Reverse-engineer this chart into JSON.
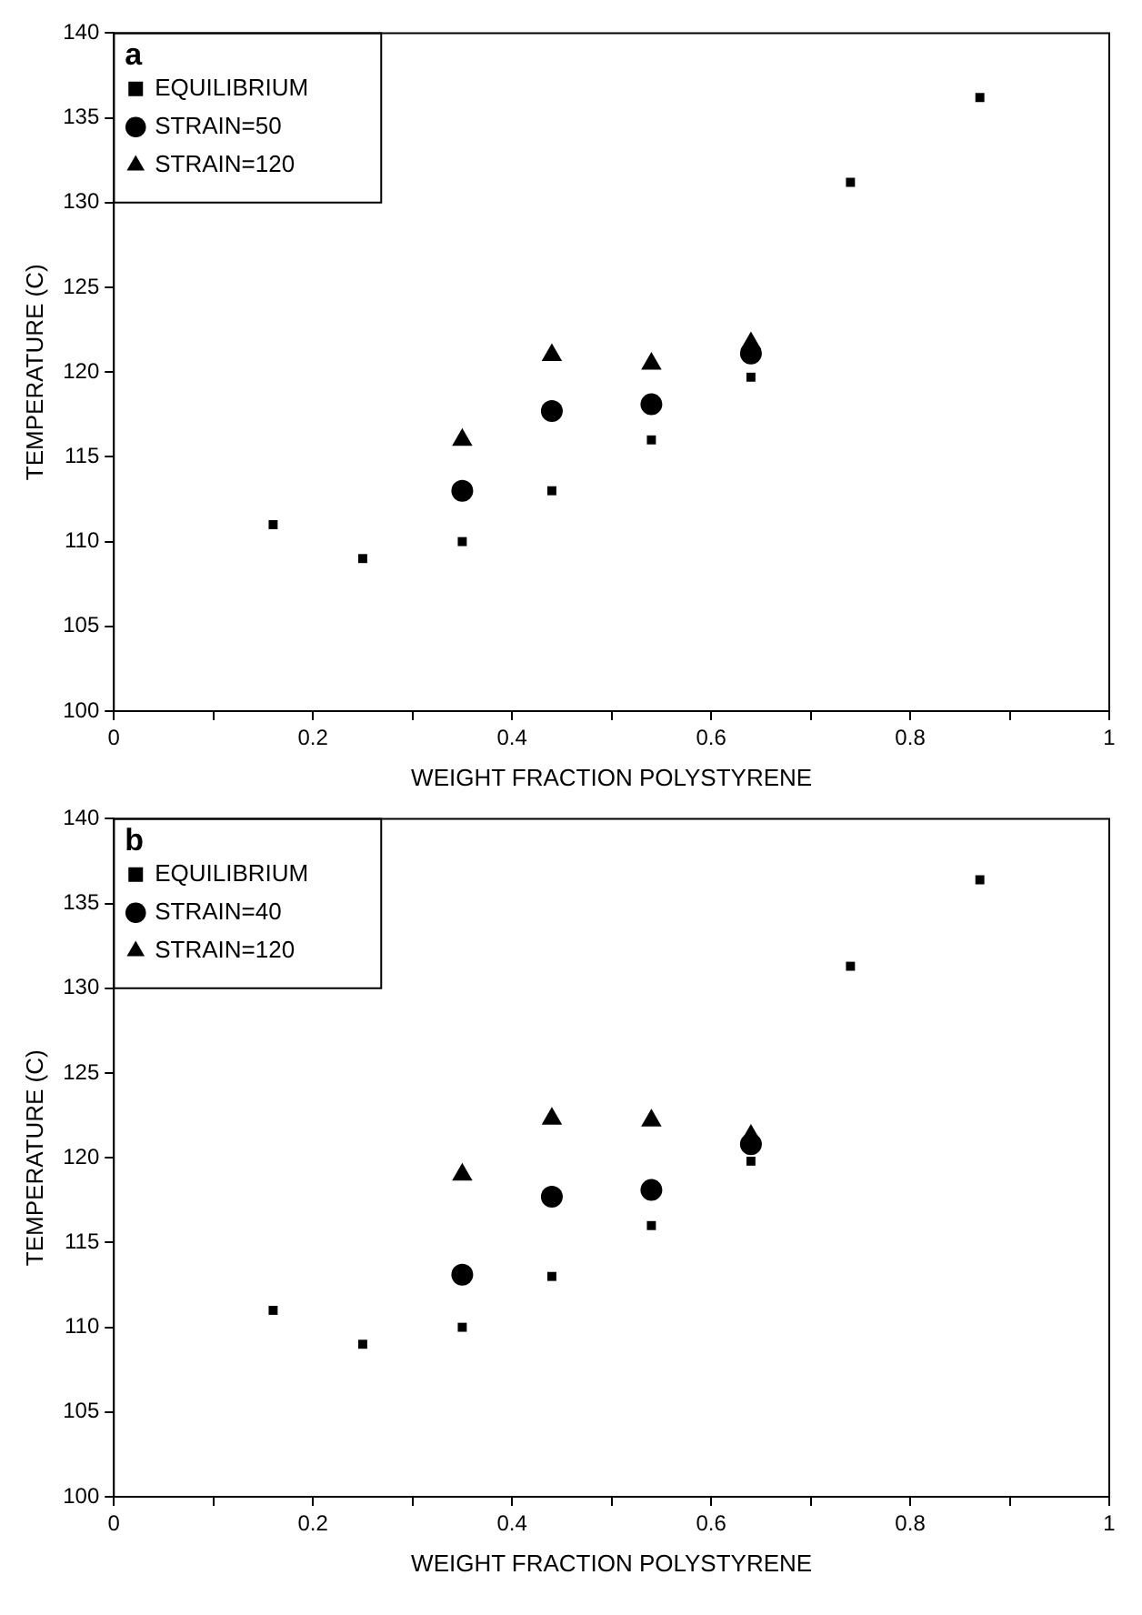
{
  "chart_data": [
    {
      "type": "scatter",
      "annotations": [
        "a"
      ],
      "xlabel": "WEIGHT FRACTION POLYSTYRENE",
      "ylabel": "TEMPERATURE (C)",
      "xlim": [
        0,
        1
      ],
      "ylim": [
        100,
        140
      ],
      "xticks": [
        0,
        {
          "value": 0.1,
          "label": null
        },
        0.2,
        {
          "value": 0.3,
          "label": null
        },
        0.4,
        {
          "value": 0.5,
          "label": null
        },
        0.6,
        {
          "value": 0.7,
          "label": null
        },
        0.8,
        {
          "value": 0.9,
          "label": null
        },
        1
      ],
      "yticks": [
        100,
        105,
        110,
        115,
        120,
        125,
        130,
        135,
        140
      ],
      "grid": false,
      "legend": "top left",
      "series": [
        {
          "name": "EQUILIBRIUM",
          "color": "#000000",
          "marker": "square",
          "x": [
            0.16,
            0.25,
            0.35,
            0.44,
            0.54,
            0.64,
            0.74,
            0.87
          ],
          "values": [
            111,
            109,
            110,
            113,
            116,
            119.7,
            131.2,
            136.2
          ]
        },
        {
          "name": "STRAIN=50",
          "color": "#000000",
          "marker": "circle",
          "x": [
            0.35,
            0.44,
            0.54,
            0.64
          ],
          "values": [
            113,
            117.7,
            118.1,
            121.1
          ]
        },
        {
          "name": "STRAIN=120",
          "color": "#000000",
          "marker": "triangle",
          "x": [
            0.35,
            0.44,
            0.54,
            0.64
          ],
          "values": [
            116,
            121,
            120.5,
            121.7
          ]
        }
      ]
    },
    {
      "type": "scatter",
      "annotations": [
        "b"
      ],
      "xlabel": "WEIGHT FRACTION POLYSTYRENE",
      "ylabel": "TEMPERATURE (C)",
      "xlim": [
        0,
        1
      ],
      "ylim": [
        100,
        140
      ],
      "xticks": [
        0,
        {
          "value": 0.1,
          "label": null
        },
        0.2,
        {
          "value": 0.3,
          "label": null
        },
        0.4,
        {
          "value": 0.5,
          "label": null
        },
        0.6,
        {
          "value": 0.7,
          "label": null
        },
        0.8,
        {
          "value": 0.9,
          "label": null
        },
        1
      ],
      "yticks": [
        100,
        105,
        110,
        115,
        120,
        125,
        130,
        135,
        140
      ],
      "grid": false,
      "legend": "top left",
      "series": [
        {
          "name": "EQUILIBRIUM",
          "color": "#000000",
          "marker": "square",
          "x": [
            0.16,
            0.25,
            0.35,
            0.44,
            0.54,
            0.64,
            0.74,
            0.87
          ],
          "values": [
            111,
            109,
            110,
            113,
            116,
            119.8,
            131.3,
            136.4
          ]
        },
        {
          "name": "STRAIN=40",
          "color": "#000000",
          "marker": "circle",
          "x": [
            0.35,
            0.44,
            0.54,
            0.64
          ],
          "values": [
            113.1,
            117.7,
            118.1,
            120.8
          ]
        },
        {
          "name": "STRAIN=120",
          "color": "#000000",
          "marker": "triangle",
          "x": [
            0.35,
            0.44,
            0.54,
            0.64
          ],
          "values": [
            119,
            122.3,
            122.2,
            121.3
          ]
        }
      ]
    }
  ]
}
